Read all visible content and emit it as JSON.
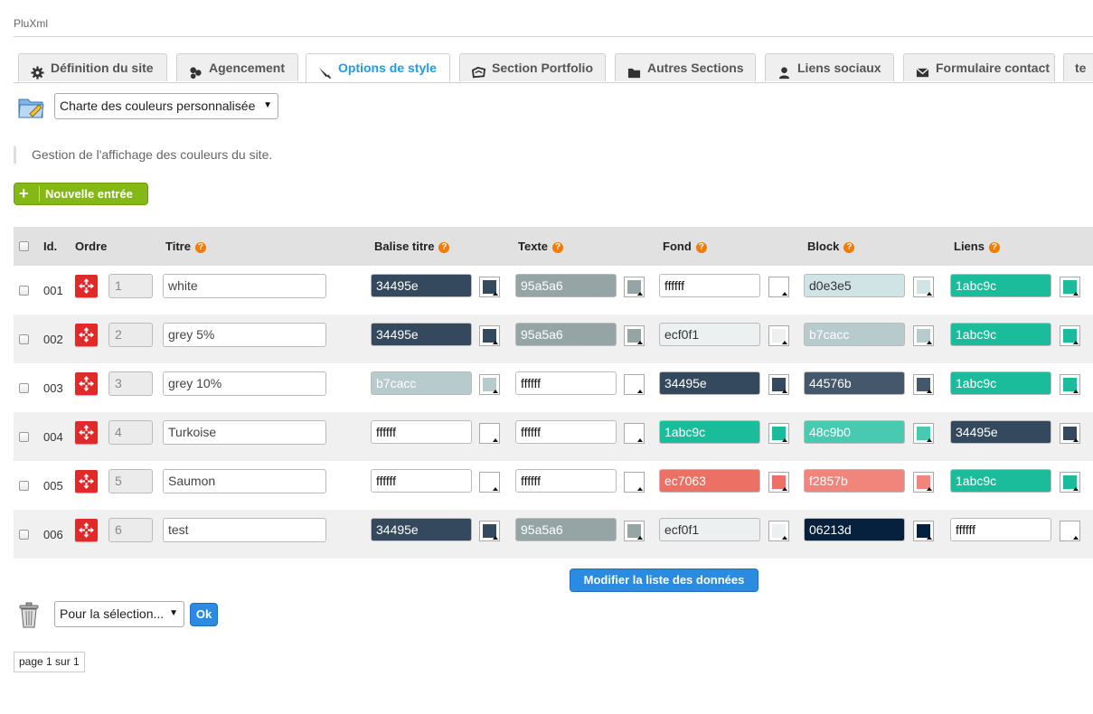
{
  "app": {
    "title": "PluXml"
  },
  "tabs": [
    {
      "label": "Définition du site",
      "icon": "gear-icon",
      "active": false
    },
    {
      "label": "Agencement",
      "icon": "layout-icon",
      "active": false
    },
    {
      "label": "Options de style",
      "icon": "brush-icon",
      "active": true
    },
    {
      "label": "Section Portfolio",
      "icon": "portfolio-icon",
      "active": false
    },
    {
      "label": "Autres Sections",
      "icon": "folder-icon",
      "active": false
    },
    {
      "label": "Liens sociaux",
      "icon": "user-icon",
      "active": false
    },
    {
      "label": "Formulaire contact",
      "icon": "envelope-icon",
      "active": false
    },
    {
      "label": "te",
      "icon": "",
      "active": false
    }
  ],
  "theme_select": {
    "value": "Charte des couleurs personnalisée"
  },
  "description": "Gestion de l'affichage des couleurs du site.",
  "new_entry_label": "Nouvelle entrée",
  "table": {
    "headers": {
      "id": "Id.",
      "order": "Ordre",
      "title": "Titre",
      "balise": "Balise titre",
      "texte": "Texte",
      "fond": "Fond",
      "block": "Block",
      "liens": "Liens"
    },
    "rows": [
      {
        "id": "001",
        "order": "1",
        "title": "white",
        "balise": "34495e",
        "texte": "95a5a6",
        "fond": "ffffff",
        "block": "d0e3e5",
        "liens": "1abc9c"
      },
      {
        "id": "002",
        "order": "2",
        "title": "grey 5%",
        "balise": "34495e",
        "texte": "95a5a6",
        "fond": "ecf0f1",
        "block": "b7cacc",
        "liens": "1abc9c"
      },
      {
        "id": "003",
        "order": "3",
        "title": "grey 10%",
        "balise": "b7cacc",
        "texte": "ffffff",
        "fond": "34495e",
        "block": "44576b",
        "liens": "1abc9c"
      },
      {
        "id": "004",
        "order": "4",
        "title": "Turkoise",
        "balise": "ffffff",
        "texte": "ffffff",
        "fond": "1abc9c",
        "block": "48c9b0",
        "liens": "34495e"
      },
      {
        "id": "005",
        "order": "5",
        "title": "Saumon",
        "balise": "ffffff",
        "texte": "ffffff",
        "fond": "ec7063",
        "block": "f2857b",
        "liens": "1abc9c"
      },
      {
        "id": "006",
        "order": "6",
        "title": "test",
        "balise": "34495e",
        "texte": "95a5a6",
        "fond": "ecf0f1",
        "block": "06213d",
        "liens": "ffffff"
      }
    ]
  },
  "modify_button_label": "Modifier la liste des données",
  "bulk_select": {
    "value": "Pour la sélection..."
  },
  "ok_label": "Ok",
  "pagination": "page 1 sur 1"
}
